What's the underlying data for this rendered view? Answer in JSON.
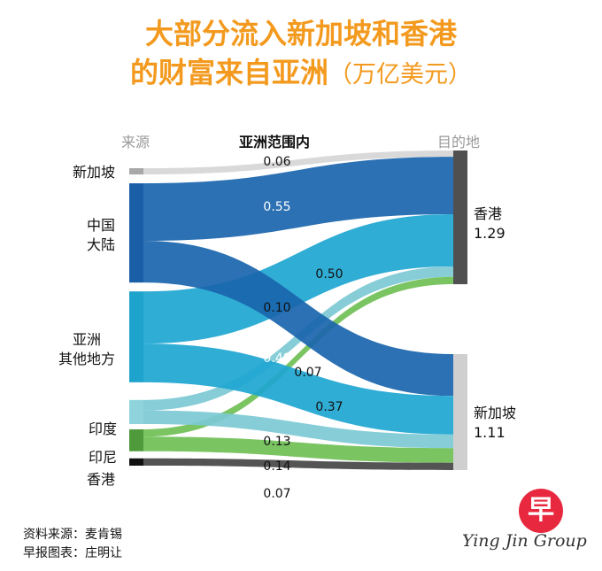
{
  "header": {
    "title_line1": "大部分流入新加坡和香港",
    "title_line2": "的财富来自亚洲",
    "unit": "（万亿美元）"
  },
  "columns": {
    "source": "来源",
    "middle": "亚洲范围内",
    "destination": "目的地"
  },
  "sources": [
    {
      "label": "新加坡",
      "color": "#a8a8a8"
    },
    {
      "label": "中国大陆",
      "line1": "中国",
      "line2": "大陆",
      "color": "#1a5ea8"
    },
    {
      "label": "亚洲其他地方",
      "line1": "亚洲",
      "line2": "其他地方",
      "color": "#1ea3cc"
    },
    {
      "label": "印度",
      "color": "#8fd3dd"
    },
    {
      "label": "印尼",
      "color": "#4f9a3b"
    },
    {
      "label": "香港",
      "color": "#111111"
    }
  ],
  "destinations": [
    {
      "label": "香港",
      "value_text": "1.29",
      "color": "#505050"
    },
    {
      "label": "新加坡",
      "value_text": "1.11",
      "color": "#cfcfcf"
    }
  ],
  "chart_data": {
    "type": "sankey",
    "unit": "万亿美元",
    "flows": [
      {
        "source": "新加坡",
        "target": "香港",
        "value": 0.06,
        "label": "0.06",
        "color": "#d6d6d6",
        "label_style": "dark"
      },
      {
        "source": "中国大陆",
        "target": "香港",
        "value": 0.55,
        "label": "0.55",
        "color": "#1a65ad",
        "label_style": "light"
      },
      {
        "source": "亚洲其他地方",
        "target": "香港",
        "value": 0.5,
        "label": "0.50",
        "color": "#1ea6d1",
        "label_style": "dark"
      },
      {
        "source": "印度",
        "target": "香港",
        "value": 0.1,
        "label": "0.10",
        "color": "#7cc9d4",
        "label_style": "dark"
      },
      {
        "source": "印尼",
        "target": "香港",
        "value": 0.07,
        "label": "0.07",
        "color": "#6fbf55",
        "label_style": "dark"
      },
      {
        "source": "中国大陆",
        "target": "新加坡",
        "value": 0.4,
        "label": "0.40",
        "color": "#1a65ad",
        "label_style": "light"
      },
      {
        "source": "亚洲其他地方",
        "target": "新加坡",
        "value": 0.37,
        "label": "0.37",
        "color": "#1ea6d1",
        "label_style": "dark"
      },
      {
        "source": "印度",
        "target": "新加坡",
        "value": 0.13,
        "label": "0.13",
        "color": "#7cc9d4",
        "label_style": "dark"
      },
      {
        "source": "印尼",
        "target": "新加坡",
        "value": 0.14,
        "label": "0.14",
        "color": "#6fbf55",
        "label_style": "dark"
      },
      {
        "source": "香港",
        "target": "新加坡",
        "value": 0.07,
        "label": "0.07",
        "color": "#454545",
        "label_style": "dark"
      }
    ]
  },
  "credits": {
    "line1": "资料来源：麦肯锡",
    "line2": "早报图表：庄明让"
  },
  "logo": {
    "char": "早",
    "text": "Ying Jin Group"
  }
}
